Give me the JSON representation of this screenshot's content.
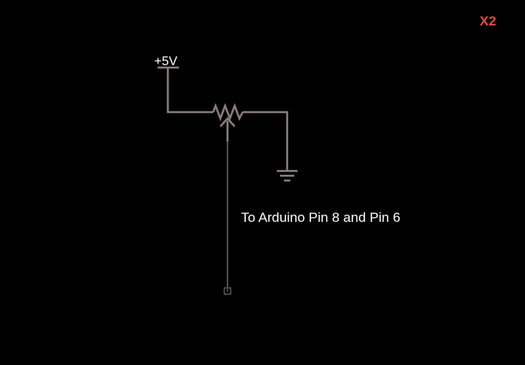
{
  "badge": {
    "text": "X2",
    "color": "#e8473b"
  },
  "supply": {
    "label": "+5V"
  },
  "note": {
    "text": "To Arduino Pin 8 and Pin 6"
  },
  "colors": {
    "background": "#000000",
    "wire": "#8a7e7c",
    "text": "#ffffff"
  }
}
